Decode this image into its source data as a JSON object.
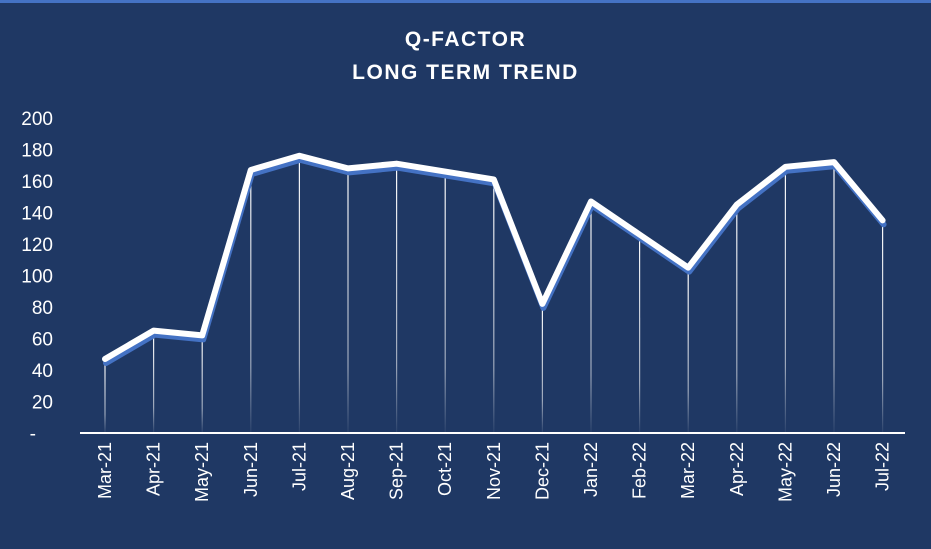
{
  "colors": {
    "background": "#1f3864",
    "line": "#ffffff",
    "line_shadow": "#4472c4",
    "droplines": "#ffffff"
  },
  "chart_data": {
    "type": "line",
    "title": "Q-FACTOR",
    "subtitle": "LONG TERM TREND",
    "xlabel": "",
    "ylabel": "",
    "categories": [
      "Mar-21",
      "Apr-21",
      "May-21",
      "Jun-21",
      "Jul-21",
      "Aug-21",
      "Sep-21",
      "Oct-21",
      "Nov-21",
      "Dec-21",
      "Jan-22",
      "Feb-22",
      "Mar-22",
      "Apr-22",
      "May-22",
      "Jun-22",
      "Jul-22"
    ],
    "series": [
      {
        "values": [
          47,
          65,
          62,
          167,
          176,
          168,
          171,
          166,
          161,
          82,
          147,
          126,
          105,
          145,
          169,
          172,
          135
        ]
      }
    ],
    "ylim": [
      0,
      200
    ],
    "yticks": [
      {
        "value": 0,
        "label": "-"
      },
      {
        "value": 20,
        "label": "20"
      },
      {
        "value": 40,
        "label": "40"
      },
      {
        "value": 60,
        "label": "60"
      },
      {
        "value": 80,
        "label": "80"
      },
      {
        "value": 100,
        "label": "100"
      },
      {
        "value": 120,
        "label": "120"
      },
      {
        "value": 140,
        "label": "140"
      },
      {
        "value": 160,
        "label": "160"
      },
      {
        "value": 180,
        "label": "180"
      },
      {
        "value": 200,
        "label": "200"
      }
    ],
    "grid": false,
    "drop_lines": true,
    "legend": "none"
  }
}
